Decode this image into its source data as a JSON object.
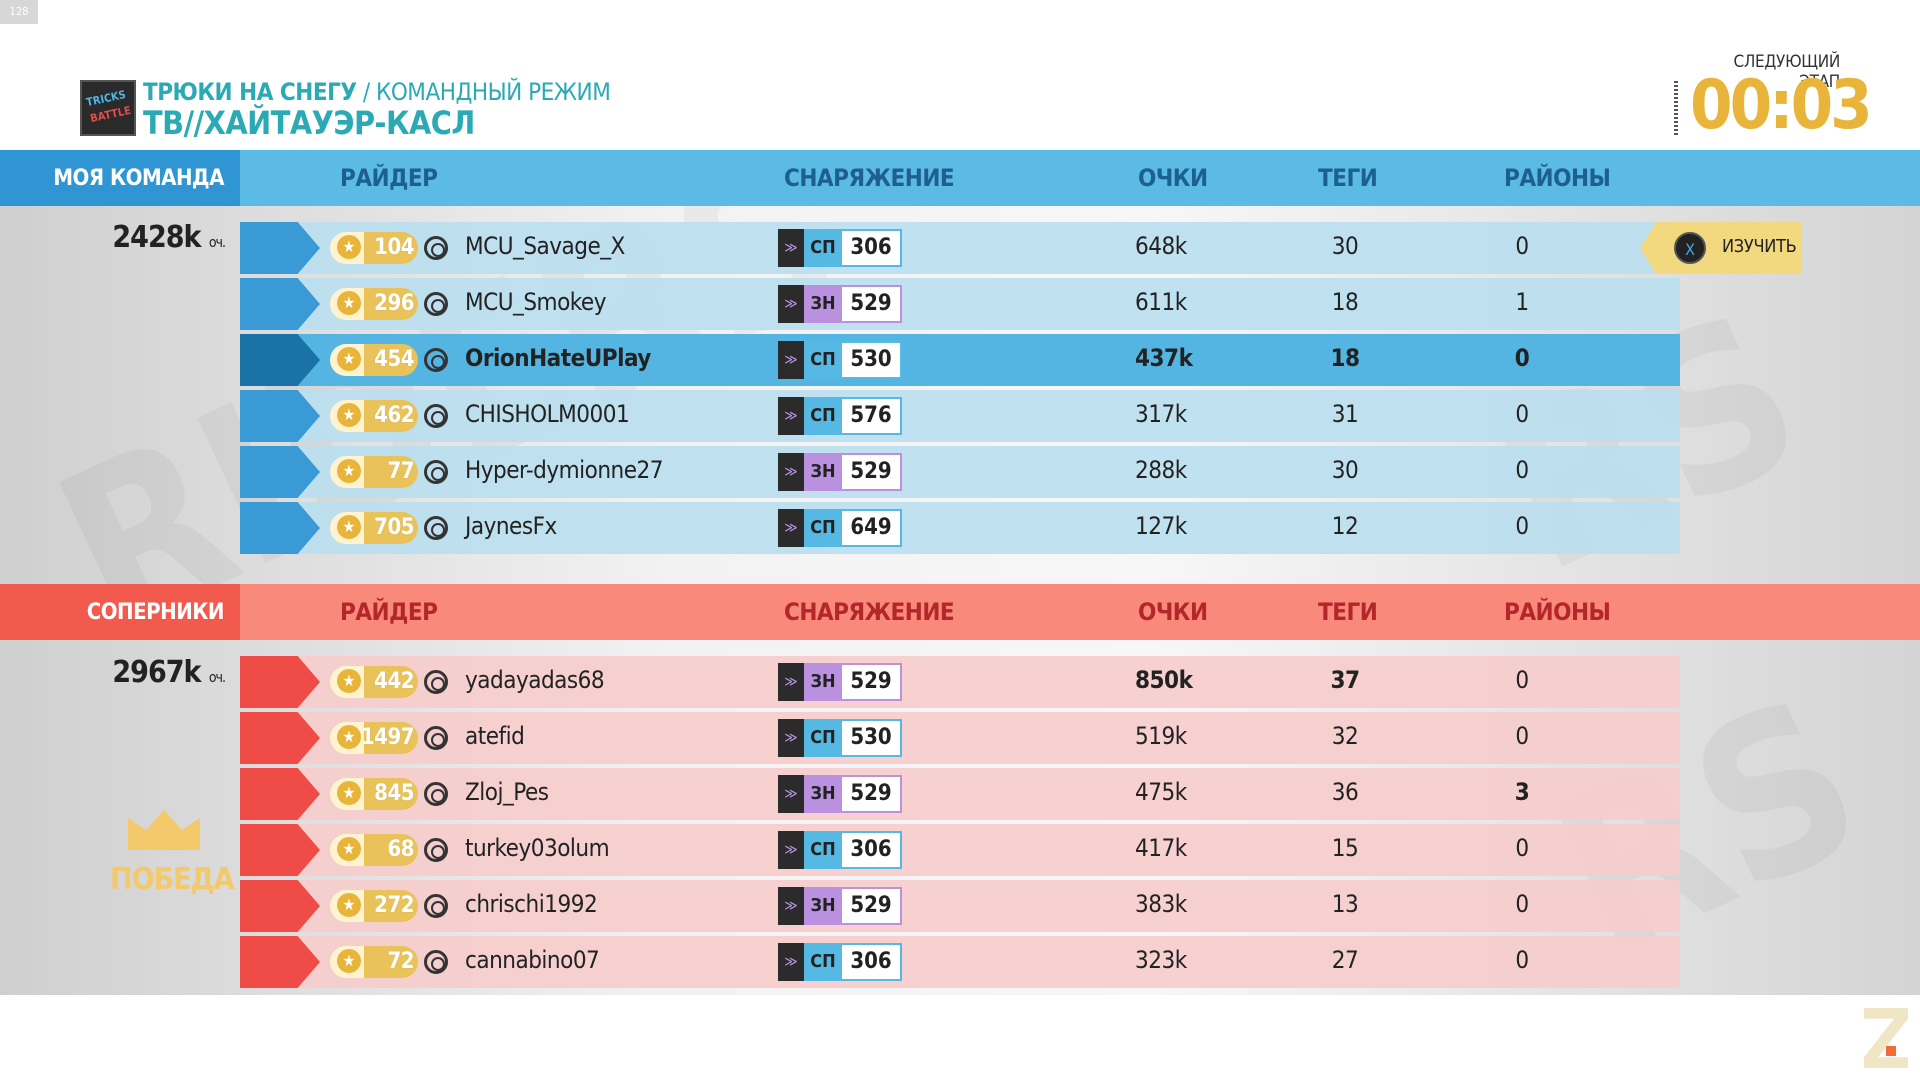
{
  "corner_tag": "128",
  "header": {
    "mode_logo_line1": "TRICKS",
    "mode_logo_line2": "BATTLE",
    "mode_name": "ТРЮКИ НА СНЕГУ",
    "mode_sub": " / КОМАНДНЫЙ РЕЖИМ",
    "map_name": "ТВ//ХАЙТАУЭР-КАСЛ",
    "next_stage_label": "СЛЕДУЮЩИЙ ЭТАП",
    "timer": "00:03"
  },
  "columns": {
    "rider": "РАЙДЕР",
    "gear": "СНАРЯЖЕНИЕ",
    "score": "ОЧКИ",
    "tags": "ТЕГИ",
    "areas": "РАЙОНЫ"
  },
  "my_team": {
    "label": "МОЯ КОМАНДА",
    "score": "2428k",
    "score_unit": "оч.",
    "players": [
      {
        "level": "104",
        "name": "MCU_Savage_X",
        "gear_type": "СП",
        "gear_value": "306",
        "score": "648k",
        "tags": "30",
        "areas": "0"
      },
      {
        "level": "296",
        "name": "MCU_Smokey",
        "gear_type": "ЗН",
        "gear_value": "529",
        "score": "611k",
        "tags": "18",
        "areas": "1"
      },
      {
        "level": "454",
        "name": "OrionHateUPlay",
        "gear_type": "СП",
        "gear_value": "530",
        "score": "437k",
        "tags": "18",
        "areas": "0"
      },
      {
        "level": "462",
        "name": "CHISHOLM0001",
        "gear_type": "СП",
        "gear_value": "576",
        "score": "317k",
        "tags": "31",
        "areas": "0"
      },
      {
        "level": "77",
        "name": "Hyper-dymionne27",
        "gear_type": "ЗН",
        "gear_value": "529",
        "score": "288k",
        "tags": "30",
        "areas": "0"
      },
      {
        "level": "705",
        "name": "JaynesFx",
        "gear_type": "СП",
        "gear_value": "649",
        "score": "127k",
        "tags": "12",
        "areas": "0"
      }
    ]
  },
  "rivals": {
    "label": "СОПЕРНИКИ",
    "score": "2967k",
    "score_unit": "оч.",
    "result": "ПОБЕДА",
    "players": [
      {
        "level": "442",
        "name": "yadayadas68",
        "gear_type": "ЗН",
        "gear_value": "529",
        "score": "850k",
        "tags": "37",
        "areas": "0"
      },
      {
        "level": "1497",
        "name": "atefid",
        "gear_type": "СП",
        "gear_value": "530",
        "score": "519k",
        "tags": "32",
        "areas": "0"
      },
      {
        "level": "845",
        "name": "Zloj_Pes",
        "gear_type": "ЗН",
        "gear_value": "529",
        "score": "475k",
        "tags": "36",
        "areas": "3"
      },
      {
        "level": "68",
        "name": "turkey03olum",
        "gear_type": "СП",
        "gear_value": "306",
        "score": "417k",
        "tags": "15",
        "areas": "0"
      },
      {
        "level": "272",
        "name": "chrischi1992",
        "gear_type": "ЗН",
        "gear_value": "529",
        "score": "383k",
        "tags": "13",
        "areas": "0"
      },
      {
        "level": "72",
        "name": "cannabino07",
        "gear_type": "СП",
        "gear_value": "306",
        "score": "323k",
        "tags": "27",
        "areas": "0"
      }
    ]
  },
  "inspect_button": {
    "key": "X",
    "label": "ИЗУЧИТЬ"
  },
  "colors": {
    "accent_gold": "#e8b43a",
    "team_blue": "#5bbbe5",
    "team_red": "#f9897b",
    "title_teal": "#2ba9b5"
  }
}
